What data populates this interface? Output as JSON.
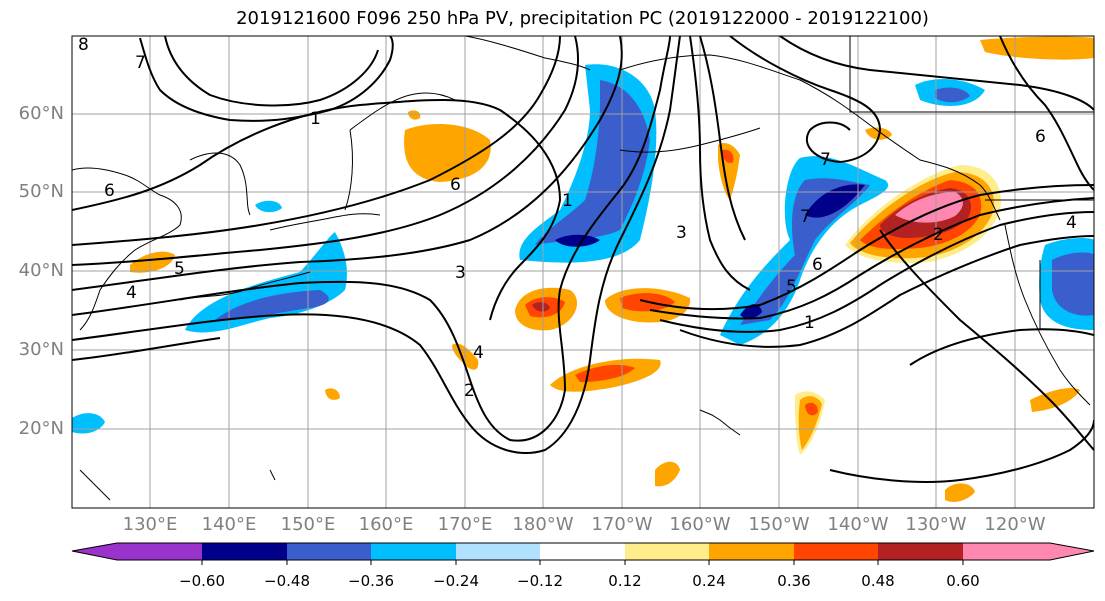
{
  "title": "2019121600 F096 250 hPa PV, precipitation PC (2019122000 - 2019122100)",
  "lat_labels": [
    "60°N",
    "50°N",
    "40°N",
    "30°N",
    "20°N"
  ],
  "lon_labels": [
    "130°E",
    "140°E",
    "150°E",
    "160°E",
    "170°E",
    "180°W",
    "170°W",
    "160°W",
    "150°W",
    "140°W",
    "130°W",
    "120°W"
  ],
  "colorbar": {
    "ticks": [
      "−0.60",
      "−0.48",
      "−0.36",
      "−0.24",
      "−0.12",
      "0.12",
      "0.24",
      "0.36",
      "0.48",
      "0.60"
    ],
    "colors": [
      "#9933cc",
      "#00008b",
      "#3a5fcd",
      "#00bfff",
      "#b0e2ff",
      "#ffffff",
      "#ffec8b",
      "#ffa500",
      "#ff4500",
      "#b22222",
      "#ff88b0"
    ]
  },
  "contour_labels": [
    "8",
    "7",
    "6",
    "5",
    "4",
    "1",
    "6",
    "3",
    "3",
    "4",
    "2",
    "1",
    "7",
    "7",
    "6",
    "5",
    "1",
    "2",
    "6",
    "4"
  ]
}
